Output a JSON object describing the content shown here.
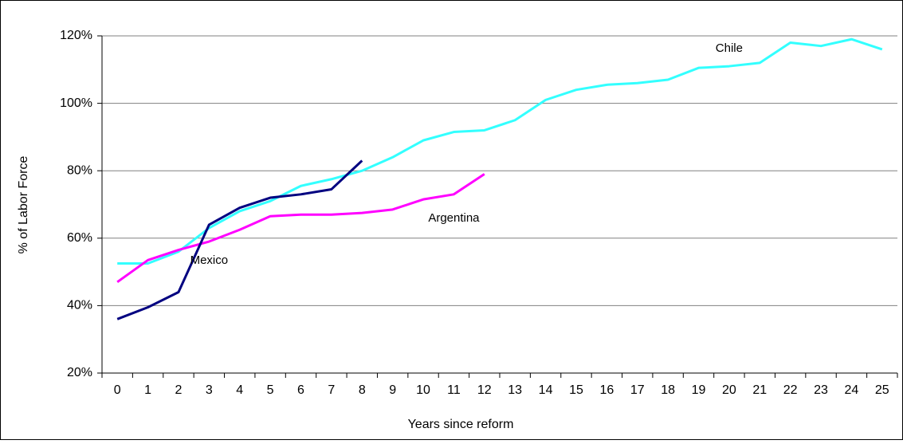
{
  "chart_data": {
    "type": "line",
    "x_label": "Years since reform",
    "y_label": "% of Labor Force",
    "categories": [
      "0",
      "1",
      "2",
      "3",
      "4",
      "5",
      "6",
      "7",
      "8",
      "9",
      "10",
      "11",
      "12",
      "13",
      "14",
      "15",
      "16",
      "17",
      "18",
      "19",
      "20",
      "21",
      "22",
      "23",
      "24",
      "25"
    ],
    "series": [
      {
        "name": "Chile",
        "color": "#33ffff",
        "values": [
          52.5,
          52.5,
          56,
          63,
          68,
          71,
          75.5,
          77.5,
          80,
          84,
          89,
          91.5,
          92,
          95,
          101,
          104,
          105.5,
          106,
          107,
          110.5,
          111,
          112,
          118,
          117,
          119,
          116
        ]
      },
      {
        "name": "Argentina",
        "color": "#ff00ff",
        "values": [
          47,
          53.5,
          56.5,
          59,
          62.5,
          66.5,
          67,
          67,
          67.5,
          68.5,
          71.5,
          73,
          79,
          null,
          null,
          null,
          null,
          null,
          null,
          null,
          null,
          null,
          null,
          null,
          null,
          null
        ]
      },
      {
        "name": "Mexico",
        "color": "#000080",
        "values": [
          36,
          39.5,
          44,
          64,
          69,
          72,
          73,
          74.5,
          83,
          null,
          null,
          null,
          null,
          null,
          null,
          null,
          null,
          null,
          null,
          null,
          null,
          null,
          null,
          null,
          null,
          null
        ]
      }
    ],
    "ylim": [
      20,
      120
    ],
    "yticks": [
      {
        "value": 20,
        "label": "20%"
      },
      {
        "value": 40,
        "label": "40%"
      },
      {
        "value": 60,
        "label": "60%"
      },
      {
        "value": 80,
        "label": "80%"
      },
      {
        "value": 100,
        "label": "100%"
      },
      {
        "value": 120,
        "label": "120%"
      }
    ],
    "grid": true
  }
}
